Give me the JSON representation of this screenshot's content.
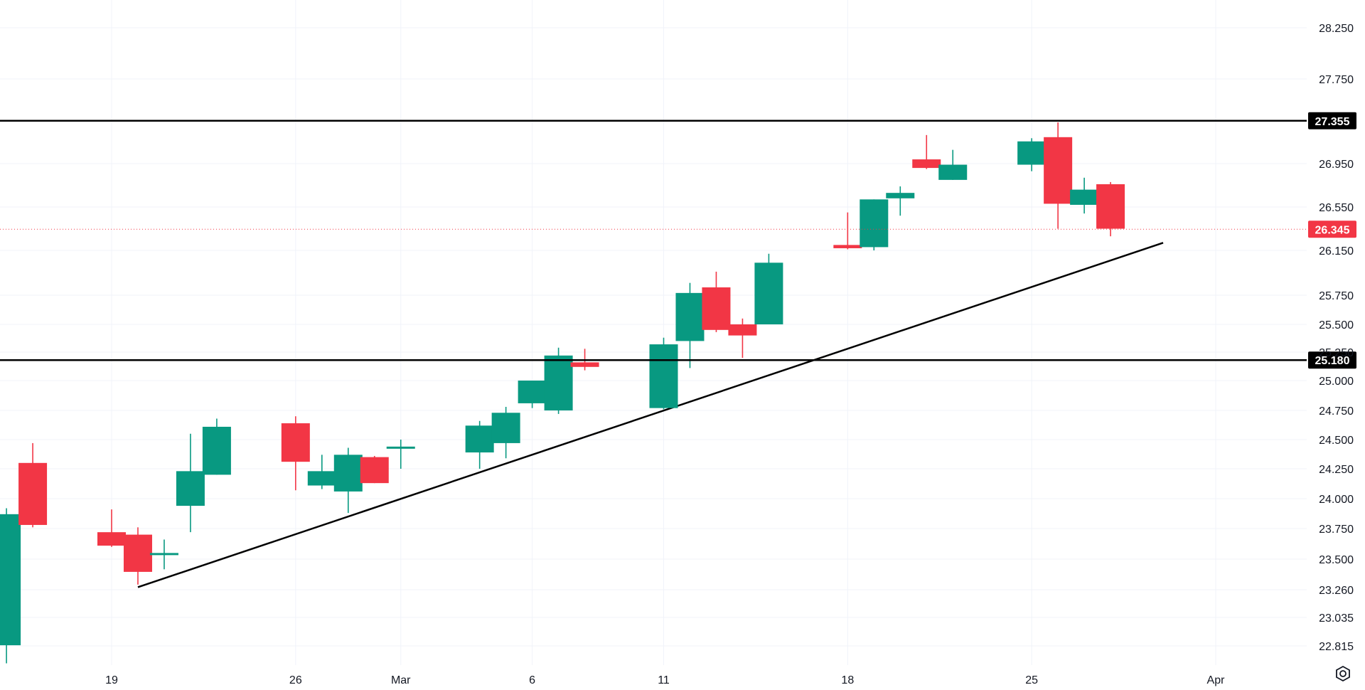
{
  "chart_data": {
    "type": "candlestick",
    "colors": {
      "up": "#089981",
      "down": "#f23645",
      "grid": "#f0f3fa",
      "line": "#000000",
      "badge_dark": "#000000",
      "badge_price": "#f23645"
    },
    "x_ticks": [
      "19",
      "26",
      "Mar",
      "6",
      "11",
      "18",
      "25",
      "Apr"
    ],
    "y_ticks": [
      "28.250",
      "27.750",
      "26.950",
      "26.550",
      "26.150",
      "25.750",
      "25.500",
      "25.250",
      "25.000",
      "24.750",
      "24.500",
      "24.250",
      "24.000",
      "23.750",
      "23.500",
      "23.260",
      "23.035",
      "22.815"
    ],
    "levels": [
      {
        "value": 27.355,
        "label": "27.355"
      },
      {
        "value": 25.18,
        "label": "25.180"
      }
    ],
    "last_price": {
      "value": 26.345,
      "label": "26.345"
    },
    "trendline": {
      "from": {
        "date": "Feb 20",
        "price": 23.28
      },
      "to": {
        "date": "Mar 30",
        "price": 26.22
      }
    },
    "candles": [
      {
        "date": "Feb 15",
        "o": 22.82,
        "h": 23.92,
        "l": 22.68,
        "c": 23.87
      },
      {
        "date": "Feb 16",
        "o": 24.3,
        "h": 24.47,
        "l": 23.76,
        "c": 23.78
      },
      {
        "date": "Feb 19",
        "o": 23.72,
        "h": 23.91,
        "l": 23.6,
        "c": 23.61
      },
      {
        "date": "Feb 20",
        "o": 23.7,
        "h": 23.76,
        "l": 23.3,
        "c": 23.4
      },
      {
        "date": "Feb 21",
        "o": 23.55,
        "h": 23.66,
        "l": 23.42,
        "c": 23.55
      },
      {
        "date": "Feb 22",
        "o": 23.94,
        "h": 24.55,
        "l": 23.72,
        "c": 24.23
      },
      {
        "date": "Feb 23",
        "o": 24.2,
        "h": 24.68,
        "l": 24.2,
        "c": 24.61
      },
      {
        "date": "Feb 26",
        "o": 24.64,
        "h": 24.7,
        "l": 24.07,
        "c": 24.31
      },
      {
        "date": "Feb 27",
        "o": 24.11,
        "h": 24.37,
        "l": 24.08,
        "c": 24.23
      },
      {
        "date": "Feb 28",
        "o": 24.06,
        "h": 24.43,
        "l": 23.88,
        "c": 24.37
      },
      {
        "date": "Feb 29",
        "o": 24.35,
        "h": 24.36,
        "l": 24.13,
        "c": 24.13
      },
      {
        "date": "Mar 1",
        "o": 24.44,
        "h": 24.5,
        "l": 24.25,
        "c": 24.44
      },
      {
        "date": "Mar 4",
        "o": 24.39,
        "h": 24.66,
        "l": 24.25,
        "c": 24.62
      },
      {
        "date": "Mar 5",
        "o": 24.47,
        "h": 24.78,
        "l": 24.34,
        "c": 24.73
      },
      {
        "date": "Mar 6",
        "o": 24.81,
        "h": 25.0,
        "l": 24.77,
        "c": 25.0
      },
      {
        "date": "Mar 7",
        "o": 24.75,
        "h": 25.29,
        "l": 24.72,
        "c": 25.22
      },
      {
        "date": "Mar 8",
        "o": 25.16,
        "h": 25.28,
        "l": 25.09,
        "c": 25.12
      },
      {
        "date": "Mar 11",
        "o": 24.77,
        "h": 25.38,
        "l": 24.76,
        "c": 25.32
      },
      {
        "date": "Mar 12",
        "o": 25.35,
        "h": 25.86,
        "l": 25.11,
        "c": 25.77
      },
      {
        "date": "Mar 13",
        "o": 25.82,
        "h": 25.96,
        "l": 25.43,
        "c": 25.45
      },
      {
        "date": "Mar 14",
        "o": 25.5,
        "h": 25.55,
        "l": 25.2,
        "c": 25.4
      },
      {
        "date": "Mar 15",
        "o": 25.5,
        "h": 26.12,
        "l": 25.5,
        "c": 26.04
      },
      {
        "date": "Mar 18",
        "o": 26.2,
        "h": 26.5,
        "l": 26.16,
        "c": 26.17
      },
      {
        "date": "Mar 19",
        "o": 26.18,
        "h": 26.62,
        "l": 26.15,
        "c": 26.62
      },
      {
        "date": "Mar 20",
        "o": 26.63,
        "h": 26.74,
        "l": 26.47,
        "c": 26.68
      },
      {
        "date": "Mar 21",
        "o": 26.99,
        "h": 27.22,
        "l": 26.9,
        "c": 26.91
      },
      {
        "date": "Mar 22",
        "o": 26.8,
        "h": 27.08,
        "l": 26.8,
        "c": 26.94
      },
      {
        "date": "Mar 25",
        "o": 26.94,
        "h": 27.19,
        "l": 26.88,
        "c": 27.16
      },
      {
        "date": "Mar 26",
        "o": 27.2,
        "h": 27.34,
        "l": 26.35,
        "c": 26.58
      },
      {
        "date": "Mar 27",
        "o": 26.57,
        "h": 26.82,
        "l": 26.49,
        "c": 26.71
      },
      {
        "date": "Mar 28",
        "o": 26.76,
        "h": 26.78,
        "l": 26.28,
        "c": 26.35
      }
    ]
  }
}
